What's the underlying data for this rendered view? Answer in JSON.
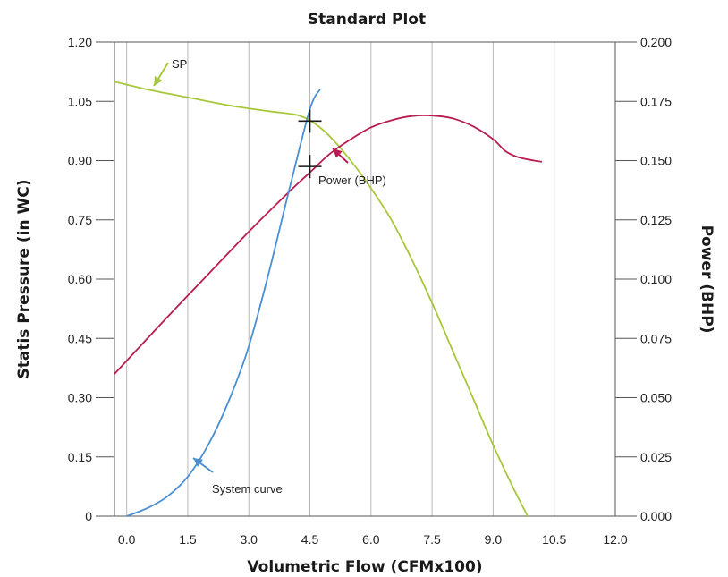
{
  "chart_data": {
    "type": "line",
    "title": "Standard Plot",
    "xlabel": "Volumetric Flow (CFMx100)",
    "ylabel_left": "Statis Pressure (in WC)",
    "ylabel_right": "Power (BHP)",
    "xlim": [
      -0.3,
      12.0
    ],
    "ylim_left": [
      0,
      1.2
    ],
    "ylim_right": [
      0,
      0.2
    ],
    "x_ticks": [
      "0.0",
      "1.5",
      "3.0",
      "4.5",
      "6.0",
      "7.5",
      "9.0",
      "10.5",
      "12.0"
    ],
    "y_left_ticks": [
      "0",
      "0.15",
      "0.30",
      "0.45",
      "0.60",
      "0.75",
      "0.90",
      "1.05",
      "1.20"
    ],
    "y_right_ticks": [
      "0.000",
      "0.025",
      "0.050",
      "0.075",
      "0.100",
      "0.125",
      "0.150",
      "0.175",
      "0.200"
    ],
    "grid": "vertical",
    "series": [
      {
        "name": "SP",
        "axis": "left",
        "color": "#a6c83a",
        "x": [
          -0.3,
          0.5,
          1.5,
          2.5,
          3.5,
          4.2,
          4.6,
          5.0,
          5.5,
          6.0,
          6.5,
          7.0,
          7.5,
          8.0,
          8.5,
          9.0,
          9.5,
          10.0,
          10.2
        ],
        "y": [
          1.1,
          1.08,
          1.06,
          1.04,
          1.025,
          1.015,
          0.995,
          0.96,
          0.9,
          0.83,
          0.75,
          0.65,
          0.54,
          0.42,
          0.3,
          0.18,
          0.07,
          -0.03,
          -0.07
        ]
      },
      {
        "name": "Power (BHP)",
        "axis": "right",
        "color": "#b81c50",
        "x": [
          -0.3,
          1.0,
          2.0,
          3.0,
          4.0,
          4.5,
          5.0,
          5.5,
          6.0,
          6.5,
          7.0,
          7.5,
          8.0,
          8.5,
          9.0,
          9.3,
          9.6,
          10.0,
          10.2
        ],
        "y": [
          0.06,
          0.084,
          0.102,
          0.12,
          0.137,
          0.145,
          0.153,
          0.159,
          0.164,
          0.167,
          0.1688,
          0.169,
          0.1678,
          0.1645,
          0.159,
          0.154,
          0.1515,
          0.15,
          0.1495
        ]
      },
      {
        "name": "System curve",
        "axis": "left",
        "color": "#4a8fd2",
        "x": [
          0.0,
          0.5,
          1.0,
          1.5,
          2.0,
          2.5,
          3.0,
          3.5,
          4.0,
          4.5,
          4.75
        ],
        "y": [
          0.0,
          0.02,
          0.05,
          0.1,
          0.18,
          0.29,
          0.43,
          0.62,
          0.83,
          1.03,
          1.08
        ]
      }
    ],
    "annotations": {
      "sp_label": "SP",
      "power_label": "Power (BHP)",
      "system_label": "System curve"
    },
    "markers": [
      {
        "x": 4.5,
        "y": 1.0,
        "axis": "left"
      },
      {
        "x": 4.5,
        "y": 0.885,
        "axis": "left"
      }
    ]
  }
}
